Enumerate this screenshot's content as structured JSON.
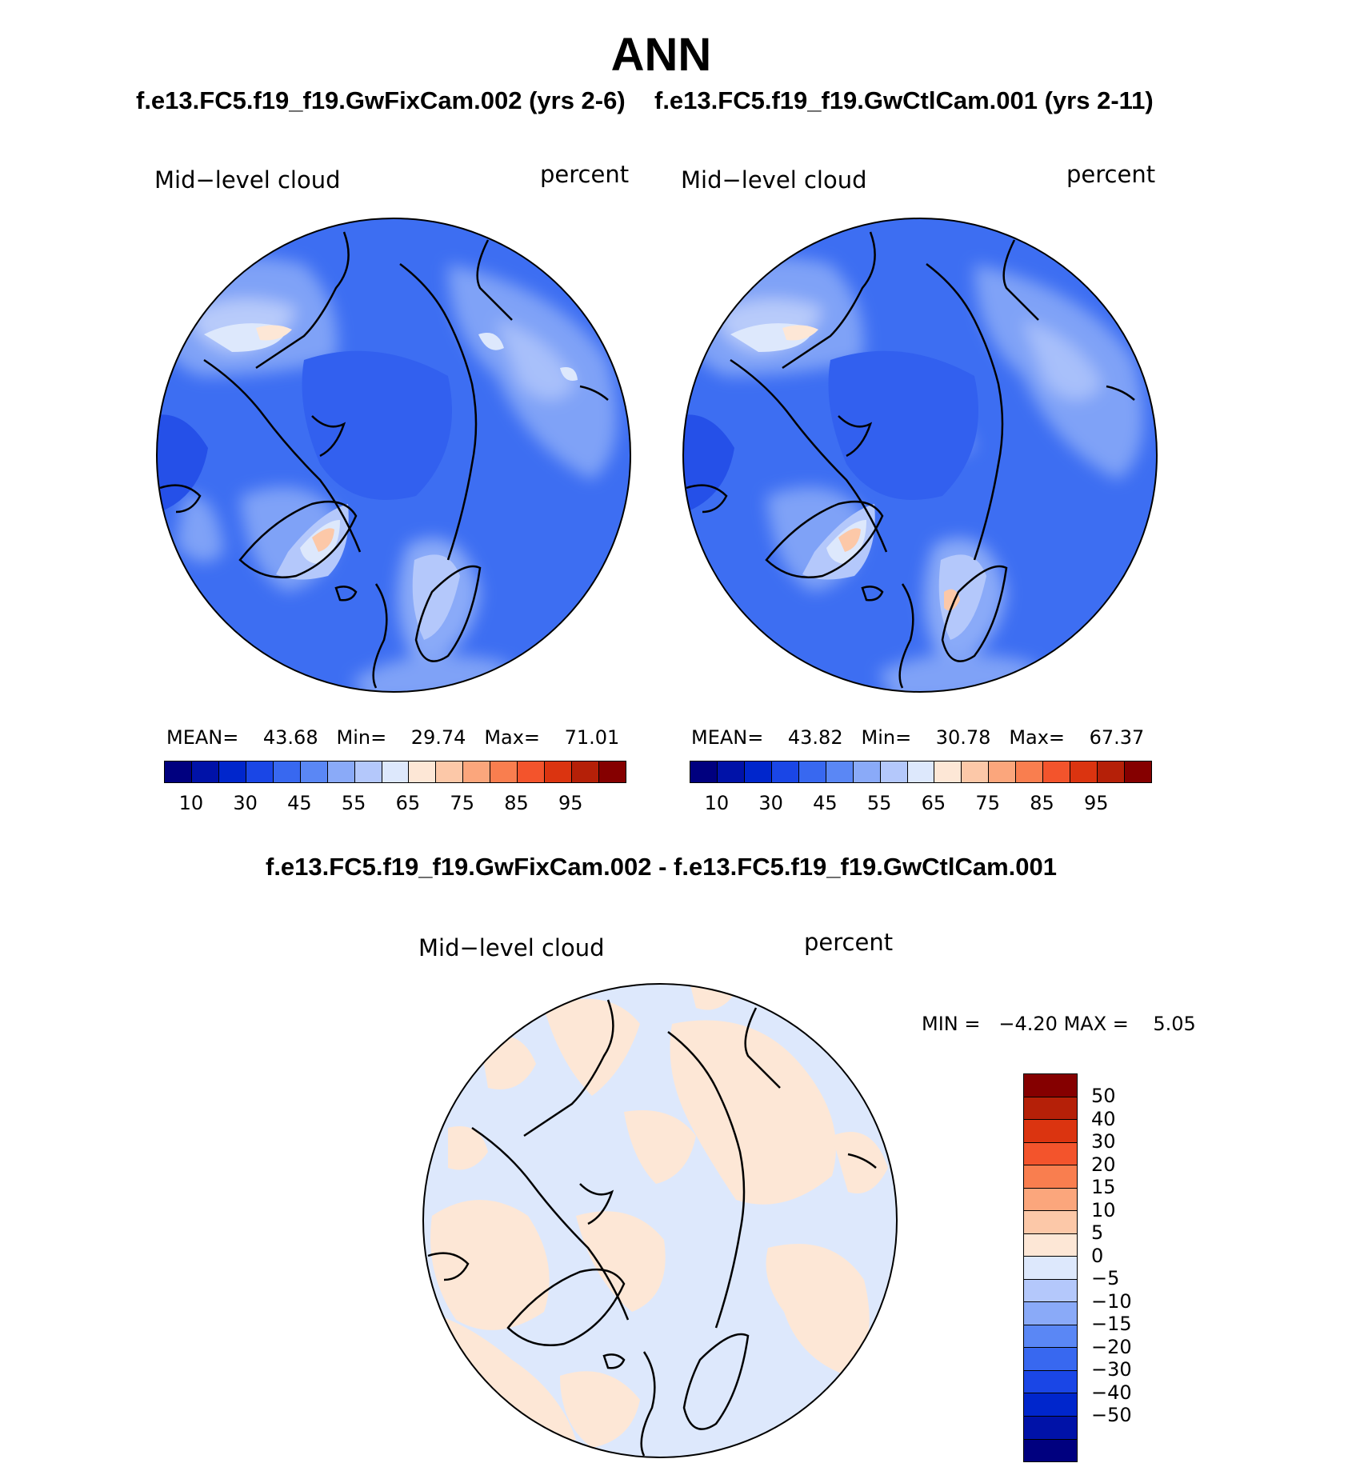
{
  "title": "ANN",
  "case1_title": "f.e13.FC5.f19_f19.GwFixCam.002 (yrs 2-6)",
  "case2_title": "f.e13.FC5.f19_f19.GwCtlCam.001 (yrs 2-11)",
  "diff_title": "f.e13.FC5.f19_f19.GwFixCam.002 - f.e13.FC5.f19_f19.GwCtlCam.001",
  "panels": [
    {
      "variable": "Mid−level cloud",
      "units": "percent",
      "stats": {
        "mean_label": "MEAN=",
        "mean": "43.68",
        "min_label": "Min=",
        "min": "29.74",
        "max_label": "Max=",
        "max": "71.01"
      }
    },
    {
      "variable": "Mid−level cloud",
      "units": "percent",
      "stats": {
        "mean_label": "MEAN=",
        "mean": "43.82",
        "min_label": "Min=",
        "min": "30.78",
        "max_label": "Max=",
        "max": "67.37"
      }
    }
  ],
  "diff_panel": {
    "variable": "Mid−level cloud",
    "units": "percent",
    "min_label": "MIN =",
    "min": "−4.20",
    "max_label": "MAX =",
    "max": "5.05"
  },
  "colorbar_abs": {
    "colors": [
      "#00007f",
      "#0012a8",
      "#0026cc",
      "#1a46e6",
      "#3868f0",
      "#5a87f5",
      "#8aaaf8",
      "#b4c8fb",
      "#dde8fc",
      "#fde7d6",
      "#fcc8a8",
      "#fba67c",
      "#f97e4f",
      "#f3542c",
      "#db3410",
      "#b52008",
      "#850000"
    ],
    "tick_labels": [
      "10",
      "30",
      "45",
      "55",
      "65",
      "75",
      "85",
      "95"
    ]
  },
  "colorbar_diff": {
    "colors": [
      "#850000",
      "#b52008",
      "#db3410",
      "#f3542c",
      "#f97e4f",
      "#fba67c",
      "#fcc8a8",
      "#fde7d6",
      "#dde8fc",
      "#b4c8fb",
      "#8aaaf8",
      "#5a87f5",
      "#3868f0",
      "#1a46e6",
      "#0026cc",
      "#0012a8",
      "#00007f"
    ],
    "tick_labels": [
      "50",
      "40",
      "30",
      "20",
      "15",
      "10",
      "5",
      "0",
      "−5",
      "−10",
      "−15",
      "−20",
      "−30",
      "−40",
      "−50"
    ]
  }
}
